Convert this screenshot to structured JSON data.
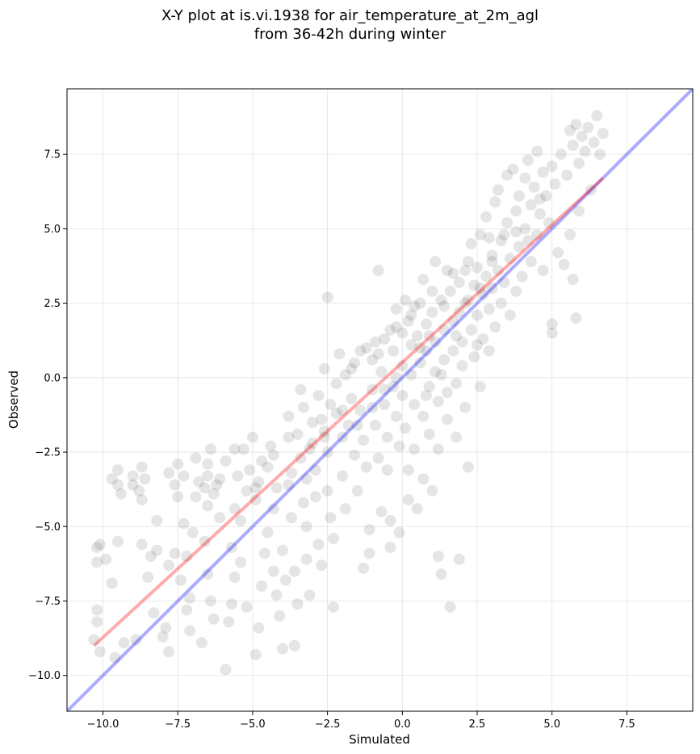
{
  "chart_data": {
    "type": "scatter",
    "title_line1": "X-Y plot at is.vi.1938 for air_temperature_at_2m_agl",
    "title_line2": "from 36-42h during winter",
    "xlabel": "Simulated",
    "ylabel": "Observed",
    "xlim": [
      -11.2,
      9.7
    ],
    "ylim": [
      -11.2,
      9.7
    ],
    "xticks": [
      -10.0,
      -7.5,
      -5.0,
      -2.5,
      0.0,
      2.5,
      5.0,
      7.5
    ],
    "yticks": [
      -10.0,
      -7.5,
      -5.0,
      -2.5,
      0.0,
      2.5,
      5.0,
      7.5
    ],
    "xtick_labels": [
      "−10.0",
      "−7.5",
      "−5.0",
      "−2.5",
      "0.0",
      "2.5",
      "5.0",
      "7.5"
    ],
    "ytick_labels": [
      "−10.0",
      "−7.5",
      "−5.0",
      "−2.5",
      "0.0",
      "2.5",
      "5.0",
      "7.5"
    ],
    "grid": true,
    "point_color": "#000000",
    "identity_line": {
      "color": "#0000ff",
      "x": [
        -11.2,
        9.7
      ],
      "y": [
        -11.2,
        9.7
      ]
    },
    "fit_line": {
      "color": "#ff0000",
      "x": [
        -10.3,
        6.7
      ],
      "y": [
        -9.0,
        6.7
      ]
    },
    "points": [
      [
        -10.3,
        -8.8
      ],
      [
        -10.1,
        -9.2
      ],
      [
        -10.2,
        -7.8
      ],
      [
        -10.2,
        -8.2
      ],
      [
        -10.1,
        -5.6
      ],
      [
        -10.2,
        -6.2
      ],
      [
        -9.9,
        -6.1
      ],
      [
        -10.2,
        -5.7
      ],
      [
        -9.7,
        -6.9
      ],
      [
        -9.5,
        -5.5
      ],
      [
        -9.6,
        -9.4
      ],
      [
        -9.3,
        -8.9
      ],
      [
        -9.7,
        -3.4
      ],
      [
        -9.5,
        -3.1
      ],
      [
        -9.4,
        -3.9
      ],
      [
        -9.5,
        -3.6
      ],
      [
        -9.0,
        -3.3
      ],
      [
        -9.0,
        -3.6
      ],
      [
        -8.8,
        -3.8
      ],
      [
        -8.6,
        -3.4
      ],
      [
        -8.7,
        -3.0
      ],
      [
        -8.7,
        -4.1
      ],
      [
        -8.9,
        -8.8
      ],
      [
        -8.7,
        -5.6
      ],
      [
        -8.5,
        -6.7
      ],
      [
        -8.4,
        -6.0
      ],
      [
        -8.3,
        -7.9
      ],
      [
        -8.2,
        -5.8
      ],
      [
        -8.0,
        -8.7
      ],
      [
        -7.9,
        -8.4
      ],
      [
        -7.8,
        -9.2
      ],
      [
        -7.8,
        -3.2
      ],
      [
        -7.6,
        -3.6
      ],
      [
        -7.5,
        -4.0
      ],
      [
        -7.5,
        -2.9
      ],
      [
        -7.3,
        -3.3
      ],
      [
        -7.3,
        -4.9
      ],
      [
        -7.0,
        -5.2
      ],
      [
        -7.8,
        -6.3
      ],
      [
        -7.6,
        -5.9
      ],
      [
        -7.2,
        -7.8
      ],
      [
        -7.2,
        -6.0
      ],
      [
        -7.1,
        -7.4
      ],
      [
        -7.1,
        -8.5
      ],
      [
        -6.9,
        -4.0
      ],
      [
        -6.8,
        -3.5
      ],
      [
        -6.6,
        -3.7
      ],
      [
        -6.4,
        -2.4
      ],
      [
        -6.5,
        -2.9
      ],
      [
        -6.5,
        -3.3
      ],
      [
        -6.5,
        -4.3
      ],
      [
        -6.6,
        -5.5
      ],
      [
        -6.5,
        -6.6
      ],
      [
        -6.7,
        -8.9
      ],
      [
        -6.4,
        -7.5
      ],
      [
        -6.3,
        -8.1
      ],
      [
        -6.2,
        -3.6
      ],
      [
        -6.1,
        -3.4
      ],
      [
        -5.9,
        -2.8
      ],
      [
        -5.9,
        -9.8
      ],
      [
        -5.7,
        -5.7
      ],
      [
        -5.6,
        -6.7
      ],
      [
        -5.7,
        -7.6
      ],
      [
        -5.8,
        -8.2
      ],
      [
        -5.6,
        -4.4
      ],
      [
        -5.4,
        -4.8
      ],
      [
        -5.4,
        -6.2
      ],
      [
        -5.2,
        -7.7
      ],
      [
        -5.3,
        -2.4
      ],
      [
        -5.2,
        -3.8
      ],
      [
        -5.1,
        -3.1
      ],
      [
        -5.0,
        -2.0
      ],
      [
        -4.9,
        -4.1
      ],
      [
        -4.8,
        -3.5
      ],
      [
        -4.9,
        -9.3
      ],
      [
        -4.8,
        -8.4
      ],
      [
        -4.7,
        -7.0
      ],
      [
        -4.6,
        -5.9
      ],
      [
        -4.5,
        -3.0
      ],
      [
        -4.7,
        -2.8
      ],
      [
        -4.4,
        -2.3
      ],
      [
        -4.5,
        -5.2
      ],
      [
        -4.3,
        -6.5
      ],
      [
        -4.3,
        -4.4
      ],
      [
        -4.2,
        -7.3
      ],
      [
        -4.1,
        -8.0
      ],
      [
        -4.0,
        -9.1
      ],
      [
        -4.0,
        -5.8
      ],
      [
        -3.9,
        -6.8
      ],
      [
        -3.8,
        -2.0
      ],
      [
        -3.8,
        -1.3
      ],
      [
        -3.8,
        -3.6
      ],
      [
        -3.7,
        -4.7
      ],
      [
        -3.6,
        -6.5
      ],
      [
        -3.5,
        -7.6
      ],
      [
        -3.6,
        -9.0
      ],
      [
        -3.4,
        -0.4
      ],
      [
        -3.3,
        -1.0
      ],
      [
        -3.4,
        -2.7
      ],
      [
        -3.2,
        -3.4
      ],
      [
        -3.3,
        -4.2
      ],
      [
        -3.2,
        -5.0
      ],
      [
        -3.2,
        -6.1
      ],
      [
        -3.1,
        -7.3
      ],
      [
        -3.0,
        -1.5
      ],
      [
        -3.0,
        -2.2
      ],
      [
        -2.9,
        -3.1
      ],
      [
        -2.9,
        -4.0
      ],
      [
        -2.8,
        -5.6
      ],
      [
        -2.7,
        -6.3
      ],
      [
        -2.8,
        -0.6
      ],
      [
        -2.6,
        0.3
      ],
      [
        -2.6,
        -1.8
      ],
      [
        -2.5,
        -2.5
      ],
      [
        -2.5,
        -3.8
      ],
      [
        -2.4,
        -4.7
      ],
      [
        -2.3,
        -5.4
      ],
      [
        -2.3,
        -7.7
      ],
      [
        -2.5,
        2.7
      ],
      [
        -2.2,
        -1.2
      ],
      [
        -2.2,
        -0.2
      ],
      [
        -2.1,
        0.8
      ],
      [
        -2.0,
        -2.0
      ],
      [
        -2.0,
        -3.3
      ],
      [
        -1.9,
        -4.4
      ],
      [
        -1.8,
        -1.6
      ],
      [
        -1.7,
        -0.7
      ],
      [
        -1.7,
        0.3
      ],
      [
        -1.6,
        -2.6
      ],
      [
        -1.5,
        -3.8
      ],
      [
        -1.4,
        0.9
      ],
      [
        -1.4,
        -1.1
      ],
      [
        -1.3,
        -2.1
      ],
      [
        -1.2,
        -3.0
      ],
      [
        -1.1,
        -5.1
      ],
      [
        -1.1,
        -5.9
      ],
      [
        -1.3,
        -6.4
      ],
      [
        -1.0,
        -0.4
      ],
      [
        -1.0,
        0.6
      ],
      [
        -0.9,
        1.2
      ],
      [
        -0.9,
        -1.6
      ],
      [
        -0.8,
        -2.7
      ],
      [
        -0.7,
        -4.5
      ],
      [
        -0.8,
        3.6
      ],
      [
        -0.7,
        0.2
      ],
      [
        -0.6,
        1.3
      ],
      [
        -0.6,
        -0.9
      ],
      [
        -0.5,
        -2.0
      ],
      [
        -0.5,
        -3.1
      ],
      [
        -0.4,
        -4.8
      ],
      [
        -0.4,
        -5.7
      ],
      [
        -0.3,
        0.9
      ],
      [
        -0.3,
        -0.3
      ],
      [
        -0.2,
        1.7
      ],
      [
        -0.2,
        2.3
      ],
      [
        -0.2,
        -1.3
      ],
      [
        -0.1,
        -2.3
      ],
      [
        -0.1,
        -5.2
      ],
      [
        0.0,
        -0.6
      ],
      [
        0.0,
        0.4
      ],
      [
        0.0,
        1.5
      ],
      [
        0.1,
        2.6
      ],
      [
        0.1,
        -1.7
      ],
      [
        0.2,
        -3.1
      ],
      [
        0.2,
        -4.1
      ],
      [
        0.3,
        0.1
      ],
      [
        0.3,
        1.1
      ],
      [
        0.3,
        2.1
      ],
      [
        0.4,
        -0.9
      ],
      [
        0.4,
        -2.4
      ],
      [
        0.5,
        -4.4
      ],
      [
        0.5,
        1.4
      ],
      [
        0.6,
        2.5
      ],
      [
        0.6,
        0.5
      ],
      [
        0.7,
        -1.3
      ],
      [
        0.7,
        -3.4
      ],
      [
        0.7,
        3.3
      ],
      [
        0.8,
        1.8
      ],
      [
        0.8,
        0.9
      ],
      [
        0.9,
        -0.3
      ],
      [
        0.9,
        -1.9
      ],
      [
        1.0,
        -3.8
      ],
      [
        1.0,
        2.2
      ],
      [
        1.1,
        3.9
      ],
      [
        1.1,
        1.2
      ],
      [
        1.1,
        0.2
      ],
      [
        1.2,
        -0.8
      ],
      [
        1.2,
        -2.4
      ],
      [
        1.2,
        -6.0
      ],
      [
        1.3,
        -6.6
      ],
      [
        1.3,
        2.6
      ],
      [
        1.4,
        1.6
      ],
      [
        1.4,
        0.6
      ],
      [
        1.5,
        3.6
      ],
      [
        1.5,
        -0.5
      ],
      [
        1.5,
        -1.4
      ],
      [
        1.6,
        -7.7
      ],
      [
        1.6,
        2.9
      ],
      [
        1.7,
        1.9
      ],
      [
        1.7,
        0.9
      ],
      [
        1.8,
        -0.2
      ],
      [
        1.8,
        -2.0
      ],
      [
        1.9,
        3.2
      ],
      [
        1.9,
        2.2
      ],
      [
        1.9,
        -6.1
      ],
      [
        2.0,
        1.2
      ],
      [
        2.0,
        0.4
      ],
      [
        2.1,
        -1.0
      ],
      [
        2.1,
        3.6
      ],
      [
        2.2,
        2.6
      ],
      [
        2.2,
        -3.0
      ],
      [
        2.3,
        1.6
      ],
      [
        2.3,
        4.5
      ],
      [
        2.4,
        0.7
      ],
      [
        2.4,
        3.1
      ],
      [
        2.5,
        3.7
      ],
      [
        2.5,
        2.1
      ],
      [
        2.6,
        -0.3
      ],
      [
        2.6,
        4.8
      ],
      [
        2.7,
        1.3
      ],
      [
        2.7,
        2.8
      ],
      [
        2.8,
        3.4
      ],
      [
        2.8,
        5.4
      ],
      [
        2.9,
        2.3
      ],
      [
        2.9,
        0.9
      ],
      [
        3.0,
        4.1
      ],
      [
        3.0,
        3.0
      ],
      [
        3.1,
        5.9
      ],
      [
        3.1,
        1.7
      ],
      [
        3.2,
        3.6
      ],
      [
        3.2,
        6.3
      ],
      [
        3.3,
        2.5
      ],
      [
        3.3,
        4.6
      ],
      [
        3.4,
        3.2
      ],
      [
        3.5,
        6.8
      ],
      [
        3.5,
        5.2
      ],
      [
        3.6,
        2.1
      ],
      [
        3.6,
        4.0
      ],
      [
        3.7,
        7.0
      ],
      [
        3.8,
        5.6
      ],
      [
        3.8,
        2.9
      ],
      [
        3.9,
        6.1
      ],
      [
        3.9,
        4.4
      ],
      [
        4.0,
        3.4
      ],
      [
        4.1,
        6.7
      ],
      [
        4.1,
        5.0
      ],
      [
        4.2,
        7.3
      ],
      [
        4.3,
        5.8
      ],
      [
        4.3,
        3.9
      ],
      [
        4.4,
        6.4
      ],
      [
        4.5,
        7.6
      ],
      [
        4.5,
        4.8
      ],
      [
        4.6,
        5.5
      ],
      [
        4.7,
        6.9
      ],
      [
        4.7,
        3.6
      ],
      [
        4.8,
        6.1
      ],
      [
        4.9,
        5.2
      ],
      [
        5.0,
        7.1
      ],
      [
        5.0,
        1.5
      ],
      [
        5.0,
        1.8
      ],
      [
        5.1,
        6.5
      ],
      [
        5.2,
        4.2
      ],
      [
        5.3,
        7.5
      ],
      [
        5.4,
        3.8
      ],
      [
        5.5,
        6.8
      ],
      [
        5.6,
        8.3
      ],
      [
        5.6,
        4.8
      ],
      [
        5.7,
        7.8
      ],
      [
        5.7,
        3.3
      ],
      [
        5.8,
        8.5
      ],
      [
        5.8,
        2.0
      ],
      [
        5.9,
        7.2
      ],
      [
        5.9,
        5.6
      ],
      [
        6.0,
        8.1
      ],
      [
        6.1,
        7.6
      ],
      [
        6.2,
        8.4
      ],
      [
        6.3,
        6.3
      ],
      [
        6.4,
        7.9
      ],
      [
        6.5,
        8.8
      ],
      [
        6.6,
        7.5
      ],
      [
        6.7,
        8.2
      ],
      [
        -8.2,
        -4.8
      ],
      [
        -7.4,
        -6.8
      ],
      [
        -6.9,
        -2.7
      ],
      [
        -6.1,
        -4.7
      ],
      [
        -5.5,
        -3.3
      ],
      [
        -4.2,
        -3.7
      ],
      [
        -3.5,
        -1.9
      ],
      [
        -2.7,
        -1.4
      ],
      [
        -2.4,
        -0.9
      ],
      [
        -1.9,
        0.1
      ],
      [
        -1.6,
        0.5
      ],
      [
        -1.2,
        1.0
      ],
      [
        -0.8,
        0.8
      ],
      [
        -0.4,
        1.6
      ],
      [
        0.2,
        1.9
      ],
      [
        0.6,
        1.0
      ],
      [
        1.0,
        2.9
      ],
      [
        1.4,
        2.4
      ],
      [
        1.8,
        1.4
      ],
      [
        2.2,
        3.9
      ],
      [
        2.6,
        3.0
      ],
      [
        3.0,
        3.9
      ],
      [
        3.4,
        4.8
      ],
      [
        3.8,
        4.9
      ],
      [
        4.2,
        4.6
      ],
      [
        4.6,
        6.0
      ],
      [
        0.9,
        1.4
      ],
      [
        1.3,
        0.1
      ],
      [
        1.7,
        3.5
      ],
      [
        2.1,
        2.5
      ],
      [
        2.5,
        1.1
      ],
      [
        2.9,
        4.7
      ],
      [
        0.4,
        2.4
      ],
      [
        0.8,
        -0.6
      ],
      [
        -0.2,
        0.0
      ],
      [
        -0.6,
        -0.4
      ],
      [
        -1.0,
        -1.0
      ],
      [
        -1.5,
        -1.6
      ],
      [
        -2.0,
        -1.1
      ],
      [
        -2.6,
        -2.0
      ],
      [
        -3.1,
        -2.4
      ],
      [
        -3.7,
        -3.2
      ],
      [
        -4.3,
        -2.6
      ],
      [
        -4.9,
        -3.7
      ],
      [
        -5.6,
        -2.4
      ],
      [
        -6.3,
        -3.9
      ]
    ]
  }
}
